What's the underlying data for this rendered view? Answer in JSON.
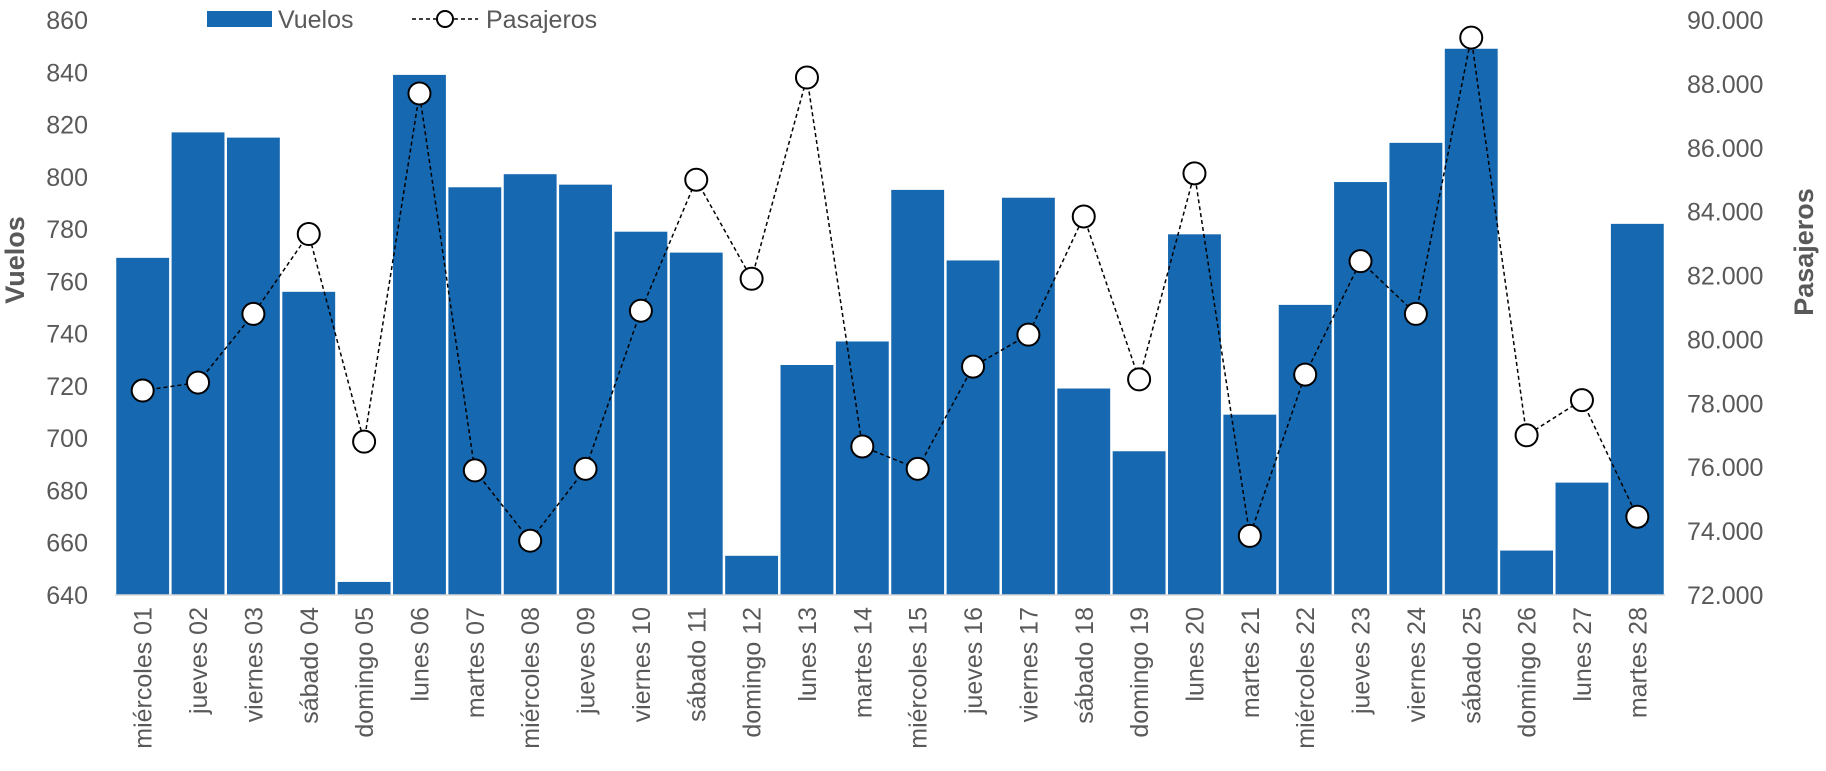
{
  "chart_data": {
    "type": "bar+line",
    "categories": [
      "miércoles 01",
      "jueves 02",
      "viernes 03",
      "sábado 04",
      "domingo 05",
      "lunes 06",
      "martes 07",
      "miércoles 08",
      "jueves 09",
      "viernes 10",
      "sábado 11",
      "domingo 12",
      "lunes 13",
      "martes 14",
      "miércoles 15",
      "jueves 16",
      "viernes 17",
      "sábado 18",
      "domingo 19",
      "lunes 20",
      "martes 21",
      "miércoles 22",
      "jueves 23",
      "viernes 24",
      "sábado 25",
      "domingo 26",
      "lunes 27",
      "martes 28"
    ],
    "series": [
      {
        "name": "Vuelos",
        "type": "bar",
        "axis": "left",
        "color": "#1668B0",
        "values": [
          769,
          817,
          815,
          756,
          645,
          839,
          796,
          801,
          797,
          779,
          771,
          655,
          728,
          737,
          795,
          768,
          792,
          719,
          695,
          778,
          709,
          751,
          798,
          813,
          849,
          657,
          683,
          782
        ]
      },
      {
        "name": "Pasajeros",
        "type": "line",
        "axis": "right",
        "color": "#000000",
        "values": [
          78400,
          78650,
          80800,
          83300,
          76800,
          87700,
          75900,
          73700,
          75950,
          80900,
          85000,
          81900,
          88200,
          76650,
          75950,
          79150,
          80150,
          83850,
          78750,
          85200,
          73850,
          78900,
          82450,
          80800,
          89450,
          77000,
          78100,
          74450
        ]
      }
    ],
    "ylabel": "Vuelos",
    "y2label": "Pasajeros",
    "ylim": [
      640,
      860
    ],
    "y2lim": [
      72000,
      90000
    ],
    "yticks": [
      "640",
      "660",
      "680",
      "700",
      "720",
      "740",
      "760",
      "780",
      "800",
      "820",
      "840",
      "860"
    ],
    "y2ticks": [
      "72.000",
      "74.000",
      "76.000",
      "78.000",
      "80.000",
      "82.000",
      "84.000",
      "86.000",
      "88.000",
      "90.000"
    ],
    "legend": {
      "position": "top-left",
      "items": [
        "Vuelos",
        "Pasajeros"
      ]
    },
    "grid": false
  }
}
